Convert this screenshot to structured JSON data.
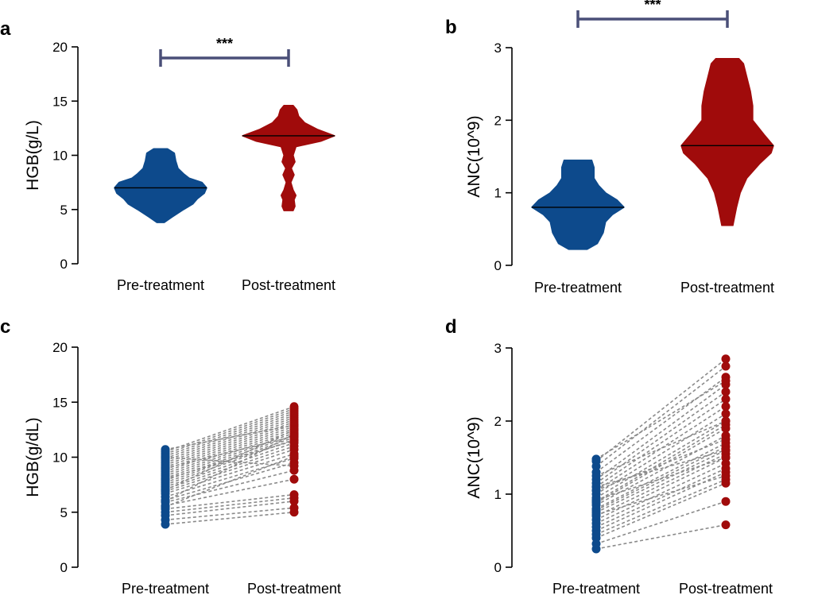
{
  "colors": {
    "pre": "#0d4a8c",
    "post": "#a00b0b",
    "bracket": "#4a4f78",
    "pair_line": "#8a8a8a"
  },
  "chart_data": [
    {
      "panel": "a",
      "type": "violin",
      "ylabel": "HGB(g/L)",
      "ylim": [
        0,
        20
      ],
      "yticks": [
        0,
        5,
        10,
        15,
        20
      ],
      "categories": [
        "Pre-treatment",
        "Post-treatment"
      ],
      "significance": "***",
      "medians": [
        7.0,
        11.8
      ],
      "violins": [
        {
          "name": "Pre-treatment",
          "profile": [
            [
              3.8,
              0.08
            ],
            [
              4.3,
              0.25
            ],
            [
              5.0,
              0.5
            ],
            [
              5.5,
              0.7
            ],
            [
              6.0,
              0.8
            ],
            [
              6.5,
              0.95
            ],
            [
              7.0,
              1.0
            ],
            [
              7.5,
              0.9
            ],
            [
              7.9,
              0.62
            ],
            [
              8.3,
              0.5
            ],
            [
              8.8,
              0.38
            ],
            [
              9.5,
              0.33
            ],
            [
              10.2,
              0.3
            ],
            [
              10.6,
              0.15
            ]
          ]
        },
        {
          "name": "Post-treatment",
          "profile": [
            [
              4.9,
              0.1
            ],
            [
              5.3,
              0.14
            ],
            [
              5.9,
              0.12
            ],
            [
              6.3,
              0.16
            ],
            [
              6.8,
              0.1
            ],
            [
              7.5,
              0.05
            ],
            [
              8.2,
              0.12
            ],
            [
              8.8,
              0.06
            ],
            [
              9.4,
              0.14
            ],
            [
              10.0,
              0.1
            ],
            [
              10.8,
              0.16
            ],
            [
              11.3,
              0.7
            ],
            [
              11.8,
              1.0
            ],
            [
              12.4,
              0.62
            ],
            [
              13.0,
              0.35
            ],
            [
              13.6,
              0.22
            ],
            [
              14.2,
              0.18
            ],
            [
              14.6,
              0.1
            ]
          ]
        }
      ]
    },
    {
      "panel": "b",
      "type": "violin",
      "ylabel": "ANC(10^9)",
      "ylim": [
        0,
        3
      ],
      "yticks": [
        0,
        1,
        2,
        3
      ],
      "categories": [
        "Pre-treatment",
        "Post-treatment"
      ],
      "significance": "***",
      "medians": [
        0.8,
        1.65
      ],
      "violins": [
        {
          "name": "Pre-treatment",
          "profile": [
            [
              0.22,
              0.2
            ],
            [
              0.3,
              0.42
            ],
            [
              0.45,
              0.55
            ],
            [
              0.6,
              0.6
            ],
            [
              0.7,
              0.75
            ],
            [
              0.8,
              1.0
            ],
            [
              0.9,
              0.85
            ],
            [
              1.0,
              0.6
            ],
            [
              1.1,
              0.45
            ],
            [
              1.2,
              0.35
            ],
            [
              1.35,
              0.35
            ],
            [
              1.45,
              0.3
            ]
          ]
        },
        {
          "name": "Post-treatment",
          "profile": [
            [
              0.55,
              0.12
            ],
            [
              0.8,
              0.2
            ],
            [
              1.0,
              0.28
            ],
            [
              1.2,
              0.42
            ],
            [
              1.4,
              0.7
            ],
            [
              1.55,
              0.95
            ],
            [
              1.65,
              1.0
            ],
            [
              1.8,
              0.8
            ],
            [
              2.0,
              0.55
            ],
            [
              2.2,
              0.55
            ],
            [
              2.4,
              0.5
            ],
            [
              2.6,
              0.42
            ],
            [
              2.78,
              0.35
            ],
            [
              2.85,
              0.25
            ]
          ]
        }
      ]
    },
    {
      "panel": "c",
      "type": "paired-scatter",
      "ylabel": "HGB(g/dL)",
      "ylim": [
        0,
        20
      ],
      "yticks": [
        0,
        5,
        10,
        15,
        20
      ],
      "categories": [
        "Pre-treatment",
        "Post-treatment"
      ],
      "pairs": [
        [
          3.9,
          5.0
        ],
        [
          4.3,
          5.4
        ],
        [
          4.7,
          6.0
        ],
        [
          5.0,
          6.3
        ],
        [
          5.3,
          6.6
        ],
        [
          5.6,
          8.0
        ],
        [
          5.9,
          8.8
        ],
        [
          6.1,
          9.5
        ],
        [
          6.4,
          9.9
        ],
        [
          6.7,
          10.3
        ],
        [
          6.9,
          10.7
        ],
        [
          7.1,
          11.0
        ],
        [
          7.3,
          11.3
        ],
        [
          7.5,
          11.6
        ],
        [
          7.7,
          11.8
        ],
        [
          7.9,
          12.0
        ],
        [
          8.1,
          12.2
        ],
        [
          8.3,
          12.4
        ],
        [
          8.5,
          12.6
        ],
        [
          8.7,
          12.8
        ],
        [
          8.9,
          13.0
        ],
        [
          9.1,
          13.2
        ],
        [
          9.3,
          13.4
        ],
        [
          9.5,
          13.6
        ],
        [
          9.7,
          13.8
        ],
        [
          9.9,
          14.0
        ],
        [
          10.1,
          14.2
        ],
        [
          10.3,
          14.4
        ],
        [
          10.5,
          14.6
        ],
        [
          10.7,
          12.9
        ],
        [
          6.0,
          12.1
        ],
        [
          7.0,
          12.5
        ],
        [
          8.0,
          11.5
        ],
        [
          9.0,
          11.9
        ],
        [
          5.5,
          10.1
        ],
        [
          10.0,
          9.2
        ]
      ]
    },
    {
      "panel": "d",
      "type": "paired-scatter",
      "ylabel": "ANC(10^9)",
      "ylim": [
        0,
        3
      ],
      "yticks": [
        0,
        1,
        2,
        3
      ],
      "categories": [
        "Pre-treatment",
        "Post-treatment"
      ],
      "pairs": [
        [
          0.25,
          0.58
        ],
        [
          0.32,
          0.9
        ],
        [
          0.4,
          1.15
        ],
        [
          0.45,
          1.2
        ],
        [
          0.5,
          1.3
        ],
        [
          0.6,
          1.42
        ],
        [
          0.65,
          1.5
        ],
        [
          0.7,
          1.55
        ],
        [
          0.75,
          1.6
        ],
        [
          0.78,
          1.65
        ],
        [
          0.8,
          1.7
        ],
        [
          0.85,
          1.8
        ],
        [
          0.88,
          1.9
        ],
        [
          0.9,
          1.95
        ],
        [
          0.95,
          2.0
        ],
        [
          1.0,
          2.1
        ],
        [
          1.05,
          2.2
        ],
        [
          1.1,
          2.3
        ],
        [
          1.15,
          2.4
        ],
        [
          1.2,
          2.5
        ],
        [
          1.3,
          2.6
        ],
        [
          1.38,
          2.75
        ],
        [
          1.45,
          2.85
        ],
        [
          1.48,
          2.55
        ],
        [
          0.72,
          1.25
        ],
        [
          0.92,
          1.5
        ],
        [
          1.1,
          1.6
        ],
        [
          1.25,
          2.0
        ],
        [
          0.55,
          1.35
        ],
        [
          1.05,
          1.75
        ]
      ]
    }
  ]
}
